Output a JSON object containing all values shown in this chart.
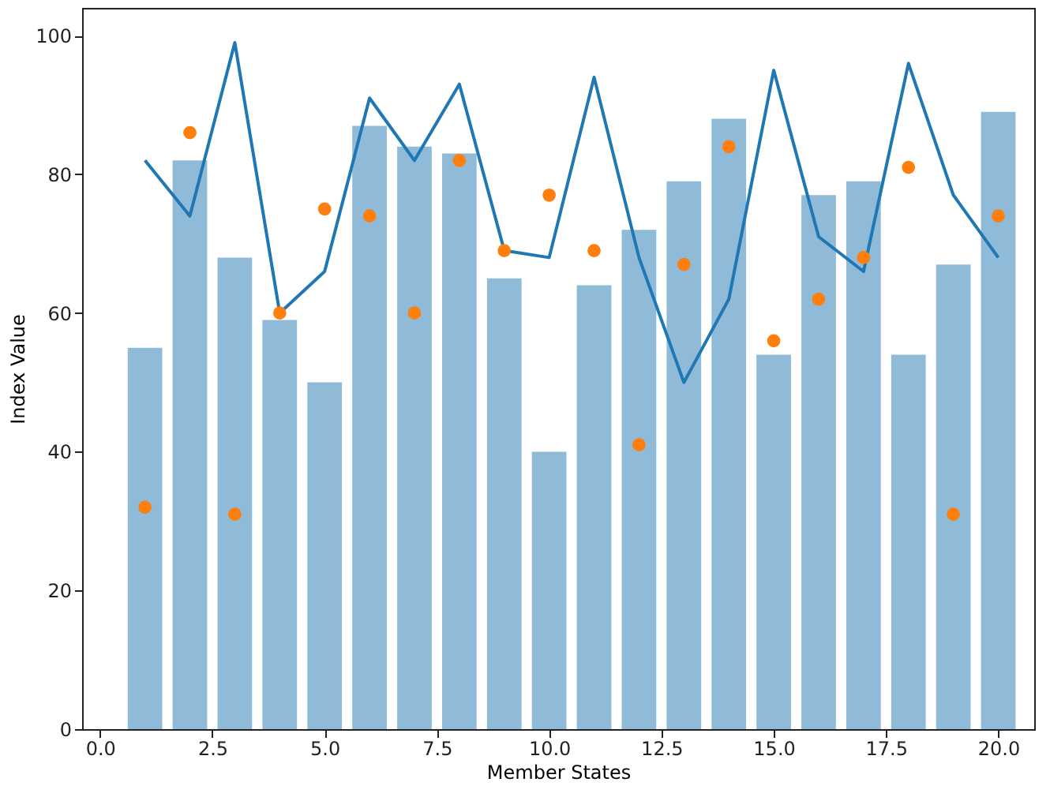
{
  "chart_data": {
    "type": "bar",
    "xlabel": "Member States",
    "ylabel": "Index Value",
    "x": [
      1,
      2,
      3,
      4,
      5,
      6,
      7,
      8,
      9,
      10,
      11,
      12,
      13,
      14,
      15,
      16,
      17,
      18,
      19,
      20
    ],
    "series": [
      {
        "color": "#8fbbd9",
        "values": [
          55,
          82,
          68,
          59,
          50,
          87,
          84,
          83,
          65,
          40,
          64,
          72,
          79,
          88,
          54,
          77,
          79,
          54,
          67,
          89
        ]
      },
      {
        "type": "line",
        "color": "#1f77b4",
        "line_style": "solid",
        "values": [
          82,
          74,
          99,
          60,
          66,
          91,
          82,
          93,
          69,
          68,
          94,
          68,
          50,
          62,
          95,
          71,
          66,
          96,
          77,
          68
        ]
      },
      {
        "type": "scatter",
        "color": "#ff7f0e",
        "marker": "circle",
        "values": [
          32,
          86,
          31,
          60,
          75,
          74,
          60,
          82,
          69,
          77,
          69,
          41,
          67,
          84,
          56,
          62,
          68,
          81,
          31,
          74
        ]
      }
    ],
    "xlim": [
      -0.4,
      20.8
    ],
    "ylim": [
      0,
      104
    ],
    "xticks": [
      {
        "value": 0,
        "label": "0.0"
      },
      {
        "value": 2.5,
        "label": "2.5"
      },
      {
        "value": 5,
        "label": "5.0"
      },
      {
        "value": 7.5,
        "label": "7.5"
      },
      {
        "value": 10,
        "label": "10.0"
      },
      {
        "value": 12.5,
        "label": "12.5"
      },
      {
        "value": 15,
        "label": "15.0"
      },
      {
        "value": 17.5,
        "label": "17.5"
      },
      {
        "value": 20,
        "label": "20.0"
      }
    ],
    "yticks": [
      0,
      20,
      40,
      60,
      80,
      100
    ],
    "grid": false
  }
}
